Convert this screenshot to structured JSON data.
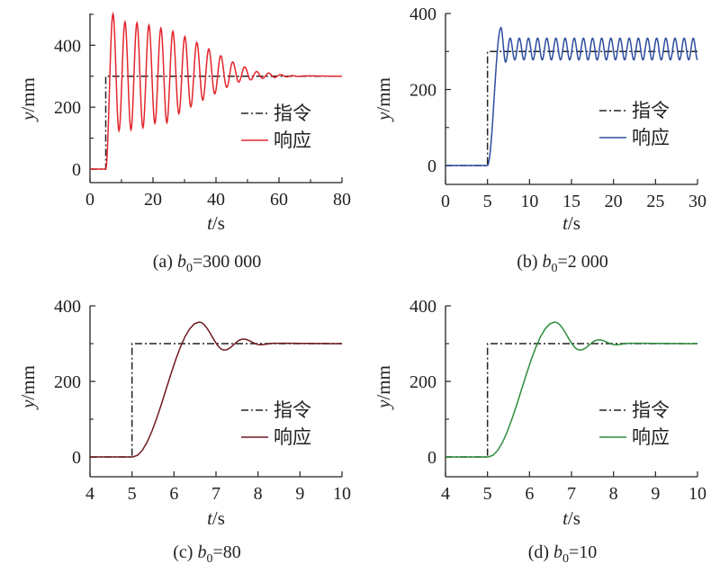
{
  "chart_data": [
    {
      "type": "line",
      "panel": "a",
      "caption_prefix": "(a) ",
      "caption_var": "b",
      "caption_sub": "0",
      "caption_value": "=300 000",
      "xlabel_var": "t",
      "xlabel_unit": "/s",
      "ylabel_var": "y",
      "ylabel_unit": "/mm",
      "xlim": [
        0,
        80
      ],
      "ylim": [
        -44,
        500
      ],
      "xticks": [
        0,
        20,
        40,
        60,
        80
      ],
      "xminor": [
        10,
        30,
        50,
        70
      ],
      "yticks": [
        0,
        200,
        400
      ],
      "yminor": [
        100,
        300,
        500
      ],
      "legend": {
        "position": "center-right",
        "entries": [
          "指令",
          "响应"
        ]
      },
      "series": [
        {
          "name": "指令",
          "style": "dash-dot",
          "color": "#222222",
          "points": [
            [
              0,
              0
            ],
            [
              5,
              0
            ],
            [
              5,
              300
            ],
            [
              80,
              300
            ]
          ],
          "interp": "linear"
        },
        {
          "name": "响应",
          "style": "solid",
          "color": "#e3262d",
          "interp": "cosine",
          "points": [
            [
              0,
              0
            ],
            [
              5,
              0
            ],
            [
              7.3,
              501
            ],
            [
              9.2,
              124
            ],
            [
              11.1,
              475
            ],
            [
              13.0,
              127
            ],
            [
              14.9,
              472
            ],
            [
              16.8,
              134
            ],
            [
              18.7,
              465
            ],
            [
              20.6,
              148
            ],
            [
              22.5,
              455
            ],
            [
              24.4,
              150
            ],
            [
              26.3,
              445
            ],
            [
              28.2,
              179
            ],
            [
              30.1,
              428
            ],
            [
              32.0,
              201
            ],
            [
              33.9,
              409
            ],
            [
              35.8,
              223
            ],
            [
              37.7,
              388
            ],
            [
              39.6,
              243
            ],
            [
              41.5,
              366
            ],
            [
              43.4,
              264
            ],
            [
              45.3,
              346
            ],
            [
              47.2,
              281
            ],
            [
              49.1,
              330
            ],
            [
              51.0,
              288
            ],
            [
              52.9,
              315
            ],
            [
              54.8,
              293
            ],
            [
              56.7,
              310
            ],
            [
              58.6,
              296
            ],
            [
              60.5,
              305
            ],
            [
              62.4,
              298
            ],
            [
              64.3,
              302
            ],
            [
              66.2,
              299
            ],
            [
              68,
              301
            ],
            [
              80,
              300
            ]
          ]
        }
      ]
    },
    {
      "type": "line",
      "panel": "b",
      "caption_prefix": "(b) ",
      "caption_var": "b",
      "caption_sub": "0",
      "caption_value": "=2 000",
      "xlabel_var": "t",
      "xlabel_unit": "/s",
      "ylabel_var": "y",
      "ylabel_unit": "/mm",
      "xlim": [
        0,
        30
      ],
      "ylim": [
        -50,
        400
      ],
      "xticks": [
        0,
        5,
        10,
        15,
        20,
        25,
        30
      ],
      "xminor": [],
      "yticks": [
        0,
        200,
        400
      ],
      "yminor": [
        100,
        300
      ],
      "legend": {
        "position": "center-right",
        "entries": [
          "指令",
          "响应"
        ]
      },
      "series": [
        {
          "name": "指令",
          "style": "dash-dot",
          "color": "#222222",
          "points": [
            [
              0,
              0
            ],
            [
              5,
              0
            ],
            [
              5,
              300
            ],
            [
              30,
              300
            ]
          ],
          "interp": "linear"
        },
        {
          "name": "响应",
          "style": "solid",
          "color": "#2f4d9e",
          "interp": "cosine",
          "points": [
            [
              0,
              0
            ],
            [
              5,
              0
            ],
            [
              6.6,
              363
            ],
            [
              7.15,
              272
            ],
            [
              7.7,
              335
            ]
          ],
          "periodic": {
            "period": 1.09,
            "max": 335,
            "min": 278,
            "until": 30
          }
        }
      ]
    },
    {
      "type": "line",
      "panel": "c",
      "caption_prefix": "(c) ",
      "caption_var": "b",
      "caption_sub": "0",
      "caption_value": "=80",
      "xlabel_var": "t",
      "xlabel_unit": "/s",
      "ylabel_var": "y",
      "ylabel_unit": "/mm",
      "xlim": [
        4,
        10
      ],
      "ylim": [
        -52,
        400
      ],
      "xticks": [
        4,
        5,
        6,
        7,
        8,
        9,
        10
      ],
      "xminor": [],
      "yticks": [
        0,
        200,
        400
      ],
      "yminor": [
        100,
        300
      ],
      "legend": {
        "position": "center-right",
        "entries": [
          "指令",
          "响应"
        ]
      },
      "series": [
        {
          "name": "指令",
          "style": "dash-dot",
          "color": "#222222",
          "points": [
            [
              4,
              0
            ],
            [
              5,
              0
            ],
            [
              5,
              300
            ],
            [
              10,
              300
            ]
          ],
          "interp": "linear"
        },
        {
          "name": "响应",
          "style": "solid",
          "color": "#6e1a20",
          "interp": "cosine",
          "points": [
            [
              4,
              0
            ],
            [
              5.02,
              0
            ],
            [
              6.6,
              357
            ],
            [
              7.2,
              283
            ],
            [
              7.65,
              312
            ],
            [
              8.05,
              297
            ],
            [
              8.4,
              301
            ],
            [
              10,
              300
            ]
          ]
        }
      ]
    },
    {
      "type": "line",
      "panel": "d",
      "caption_prefix": "(d) ",
      "caption_var": "b",
      "caption_sub": "0",
      "caption_value": "=10",
      "xlabel_var": "t",
      "xlabel_unit": "/s",
      "ylabel_var": "y",
      "ylabel_unit": "/mm",
      "xlim": [
        4,
        10
      ],
      "ylim": [
        -52,
        400
      ],
      "xticks": [
        4,
        5,
        6,
        7,
        8,
        9,
        10
      ],
      "xminor": [],
      "yticks": [
        0,
        200,
        400
      ],
      "yminor": [
        100,
        300
      ],
      "legend": {
        "position": "center-right",
        "entries": [
          "指令",
          "响应"
        ]
      },
      "series": [
        {
          "name": "指令",
          "style": "dash-dot",
          "color": "#222222",
          "points": [
            [
              4,
              0
            ],
            [
              5,
              0
            ],
            [
              5,
              300
            ],
            [
              10,
              300
            ]
          ],
          "interp": "linear"
        },
        {
          "name": "响应",
          "style": "solid",
          "color": "#2e8b3c",
          "interp": "cosine",
          "points": [
            [
              4,
              0
            ],
            [
              5.02,
              0
            ],
            [
              6.6,
              357
            ],
            [
              7.2,
              283
            ],
            [
              7.65,
              310
            ],
            [
              8.05,
              297
            ],
            [
              8.4,
              301
            ],
            [
              10,
              300
            ]
          ]
        }
      ]
    }
  ]
}
